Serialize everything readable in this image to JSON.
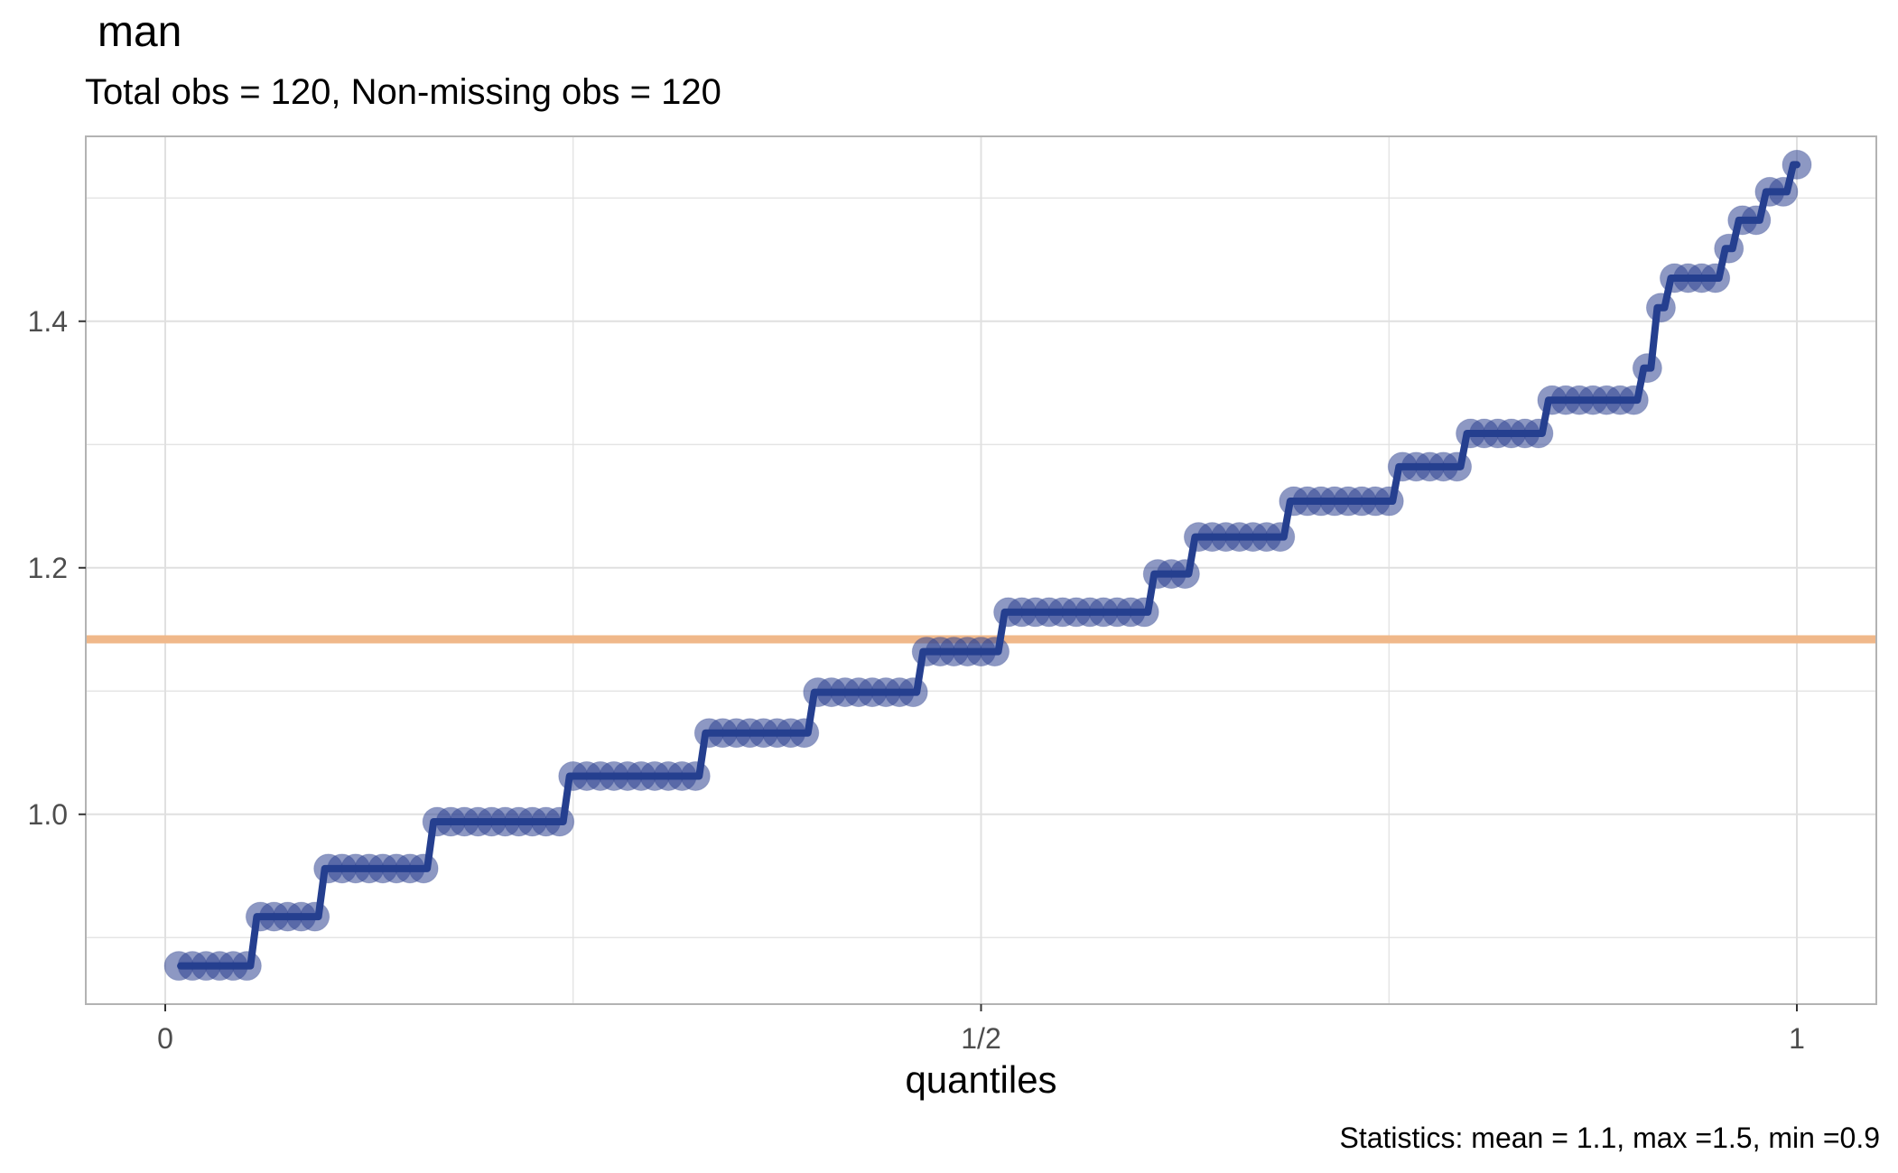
{
  "header": {
    "title": "man",
    "subtitle": "Total obs = 120,  Non-missing obs = 120"
  },
  "caption": "Statistics: mean = 1.1, max =1.5, min =0.9",
  "colors": {
    "points": "#2f4391",
    "line": "#253f8f",
    "mean_line": "#f0b88a",
    "grid": "#e0e0e0",
    "panel_border": "#b3b3b3"
  },
  "chart_data": {
    "type": "scatter",
    "title": "man",
    "subtitle": "Total obs = 120,  Non-missing obs = 120",
    "xlabel": "quantiles",
    "ylabel": "",
    "xlim": [
      -0.048,
      1.048
    ],
    "ylim": [
      0.846,
      1.55
    ],
    "x_ticks": [
      {
        "value": 0,
        "label": "0"
      },
      {
        "value": 0.5,
        "label": "1/2"
      },
      {
        "value": 1,
        "label": "1"
      }
    ],
    "y_ticks": [
      {
        "value": 1.0,
        "label": "1.0"
      },
      {
        "value": 1.2,
        "label": "1.2"
      },
      {
        "value": 1.4,
        "label": "1.4"
      }
    ],
    "grid": true,
    "reference_line": {
      "type": "horizontal",
      "y": 1.142,
      "meaning": "mean"
    },
    "step_line": true,
    "series": [
      {
        "runs": [
          {
            "y": 0.877,
            "n": 6
          },
          {
            "y": 0.917,
            "n": 5
          },
          {
            "y": 0.956,
            "n": 8
          },
          {
            "y": 0.994,
            "n": 10
          },
          {
            "y": 1.031,
            "n": 10
          },
          {
            "y": 1.066,
            "n": 8
          },
          {
            "y": 1.099,
            "n": 8
          },
          {
            "y": 1.132,
            "n": 6
          },
          {
            "y": 1.164,
            "n": 11
          },
          {
            "y": 1.195,
            "n": 3
          },
          {
            "y": 1.225,
            "n": 7
          },
          {
            "y": 1.254,
            "n": 8
          },
          {
            "y": 1.282,
            "n": 5
          },
          {
            "y": 1.309,
            "n": 6
          },
          {
            "y": 1.336,
            "n": 7
          },
          {
            "y": 1.362,
            "n": 1
          },
          {
            "y": 1.411,
            "n": 1
          },
          {
            "y": 1.435,
            "n": 4
          },
          {
            "y": 1.459,
            "n": 1
          },
          {
            "y": 1.482,
            "n": 2
          },
          {
            "y": 1.505,
            "n": 2
          },
          {
            "y": 1.527,
            "n": 1
          }
        ]
      }
    ]
  }
}
